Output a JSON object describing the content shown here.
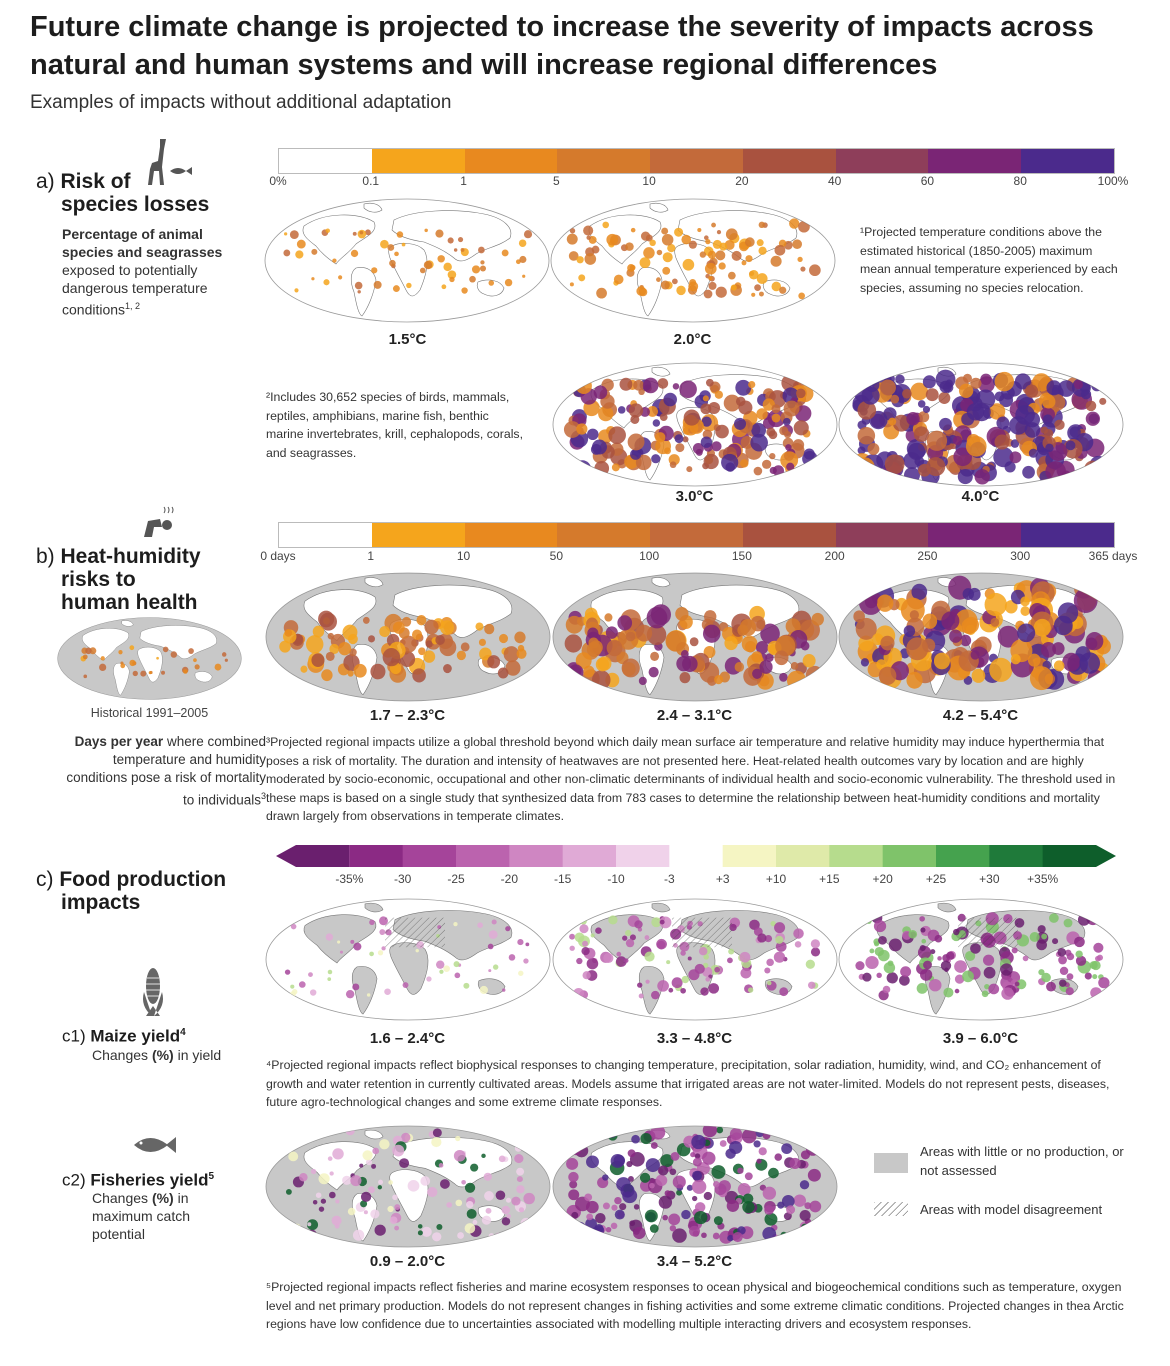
{
  "title": "Future climate change is projected to increase the severity of impacts across natural and human systems and will increase regional differences",
  "subtitle": "Examples of impacts without additional adaptation",
  "species": {
    "label_prefix": "a) ",
    "heading_1": "Risk of",
    "heading_2": "species losses",
    "desc_bold": "Percentage of animal species and seagrasses",
    "desc_rest": "exposed to potentially dangerous temperature conditions",
    "desc_sup": "1, 2",
    "scale_ticks": [
      "0%",
      "0.1",
      "1",
      "5",
      "10",
      "20",
      "40",
      "60",
      "80",
      "100%"
    ],
    "scale_colors": [
      "#ffffff",
      "#f5a51c",
      "#e8891f",
      "#d57a2c",
      "#c36a3a",
      "#a9523f",
      "#8e3e5a",
      "#7a2575",
      "#4b2a8c"
    ],
    "note1": "¹Projected temperature conditions above the estimated historical (1850-2005) maximum mean annual temperature experienced by each species, assuming no species relocation.",
    "note2": "²Includes 30,652 species of birds, mammals, reptiles, amphibians, marine fish, benthic marine invertebrates, krill, cephalopods, corals, and seagrasses.",
    "maps": [
      "1.5°C",
      "2.0°C",
      "3.0°C",
      "4.0°C"
    ]
  },
  "heat": {
    "label_prefix": "b) ",
    "heading_1": "Heat-humidity",
    "heading_2": "risks to",
    "heading_3": "human health",
    "scale_ticks": [
      "0 days",
      "1",
      "10",
      "50",
      "100",
      "150",
      "200",
      "250",
      "300",
      "365 days"
    ],
    "scale_colors": [
      "#ffffff",
      "#f5a51c",
      "#e8891f",
      "#d57a2c",
      "#c36a3a",
      "#a9523f",
      "#8e3e5a",
      "#7a2575",
      "#4b2a8c"
    ],
    "historical_label": "Historical 1991–2005",
    "desc_bold": "Days per year",
    "desc_rest": " where combined temperature and humidity conditions pose a risk of mortality to individuals",
    "desc_sup": "3",
    "maps": [
      "1.7 – 2.3°C",
      "2.4 – 3.1°C",
      "4.2 – 5.4°C"
    ],
    "note3": "³Projected regional impacts utilize a global threshold beyond which daily mean surface air temperature and relative humidity may induce hyperthermia that poses a risk of mortality. The duration and intensity of heatwaves are not presented here. Heat-related health outcomes vary by location and are highly moderated by socio-economic, occupational and other non-climatic determinants of individual health and socio-economic vulnerability. The threshold used in these maps is based on a single study that synthesized data from 783 cases to determine the relationship between heat-humidity conditions and mortality drawn largely from observations in temperate climates."
  },
  "food": {
    "label_prefix": "c) ",
    "heading_1": "Food production",
    "heading_2": "impacts",
    "scale_ticks": [
      "-35%",
      "-30",
      "-25",
      "-20",
      "-15",
      "-10",
      "-3",
      "+3",
      "+10",
      "+15",
      "+20",
      "+25",
      "+30",
      "+35%"
    ],
    "scale_colors": [
      "#6a1f6e",
      "#8b2a84",
      "#a5449a",
      "#bb63ae",
      "#cf86c2",
      "#e0aad6",
      "#f0d2ea",
      "#ffffff",
      "#f5f5c3",
      "#dfeaa9",
      "#b6dc8d",
      "#7fc36a",
      "#45a24e",
      "#1f7a3a",
      "#0e5e2b"
    ],
    "maize": {
      "label_prefix": "c1) ",
      "heading": "Maize yield",
      "sup": "4",
      "desc_pre": "Changes ",
      "desc_bold": "(%)",
      "desc_post": " in yield",
      "maps": [
        "1.6 – 2.4°C",
        "3.3 – 4.8°C",
        "3.9 – 6.0°C"
      ],
      "note4": "⁴Projected regional impacts reflect biophysical responses to changing temperature, precipitation, solar radiation, humidity, wind, and CO₂ enhancement of growth and water retention in currently cultivated areas. Models assume that irrigated areas are not water-limited. Models do not represent pests, diseases, future agro-technological changes and some extreme climate responses."
    },
    "fisheries": {
      "label_prefix": "c2) ",
      "heading": "Fisheries yield",
      "sup": "5",
      "desc_pre": "Changes ",
      "desc_bold": "(%)",
      "desc_post": " in maximum catch potential",
      "maps": [
        "0.9 – 2.0°C",
        "3.4 – 5.2°C"
      ],
      "note5": "⁵Projected regional impacts reflect fisheries and marine ecosystem responses to ocean physical and biogeochemical conditions such as temperature, oxygen level and net primary production. Models do not represent changes in fishing activities and some extreme climatic conditions. Projected changes in thea Arctic regions have low confidence due to uncertainties associated with modelling multiple interacting drivers and ecosystem responses."
    },
    "legend": {
      "grey": "Areas with little or no production, or not assessed",
      "hatch": "Areas with model disagreement"
    }
  }
}
